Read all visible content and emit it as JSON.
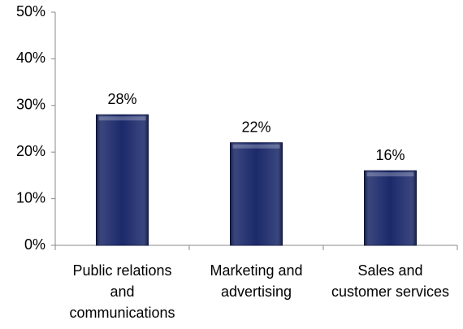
{
  "chart_data": {
    "type": "bar",
    "categories": [
      "Public relations and communications",
      "Marketing and advertising",
      "Sales and customer services"
    ],
    "values": [
      28,
      22,
      16
    ],
    "value_labels": [
      "28%",
      "22%",
      "16%"
    ],
    "color": "#1c2a6b",
    "ylim": [
      0,
      50
    ],
    "yticks": [
      {
        "value": 0,
        "label": "0%"
      },
      {
        "value": 10,
        "label": "10%"
      },
      {
        "value": 20,
        "label": "20%"
      },
      {
        "value": 30,
        "label": "30%"
      },
      {
        "value": 40,
        "label": "40%"
      },
      {
        "value": 50,
        "label": "50%"
      }
    ],
    "grid": false
  }
}
